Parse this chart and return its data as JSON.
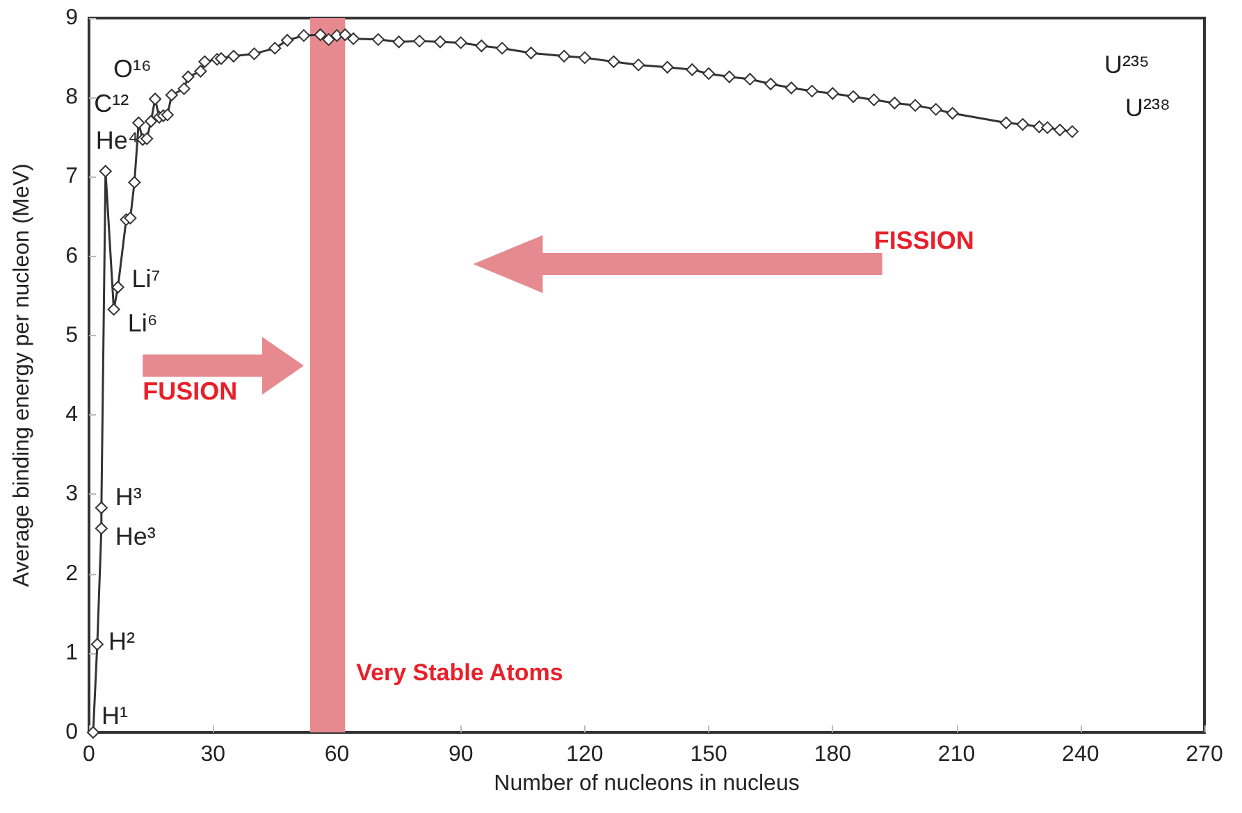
{
  "chart_data": {
    "type": "line",
    "xlabel": "Number of nucleons in nucleus",
    "ylabel": "Average binding energy per nucleon (MeV)",
    "xlim": [
      0,
      270
    ],
    "xticks": [
      0,
      30,
      60,
      90,
      120,
      150,
      180,
      210,
      240,
      270
    ],
    "ylim": [
      0,
      9
    ],
    "yticks": [
      0,
      1,
      2,
      3,
      4,
      5,
      6,
      7,
      8,
      9
    ],
    "marker": "diamond",
    "line_style": "solid",
    "series": [
      {
        "color": "#333333",
        "x": [
          1,
          2,
          3,
          3,
          4,
          6,
          7,
          9,
          10,
          11,
          12,
          13,
          14,
          15,
          16,
          17,
          18,
          19,
          20,
          23,
          24,
          27,
          28,
          31,
          32,
          35,
          40,
          45,
          48,
          52,
          56,
          58,
          60,
          62,
          64,
          70,
          75,
          80,
          85,
          90,
          95,
          100,
          107,
          115,
          120,
          127,
          133,
          140,
          146,
          150,
          155,
          160,
          165,
          170,
          175,
          180,
          185,
          190,
          195,
          200,
          205,
          209,
          222,
          226,
          230,
          232,
          235,
          238
        ],
        "values": [
          0,
          1.11,
          2.57,
          2.83,
          7.07,
          5.33,
          5.61,
          6.46,
          6.48,
          6.93,
          7.68,
          7.47,
          7.48,
          7.7,
          7.98,
          7.75,
          7.77,
          7.78,
          8.03,
          8.11,
          8.26,
          8.33,
          8.45,
          8.48,
          8.49,
          8.52,
          8.55,
          8.62,
          8.72,
          8.78,
          8.79,
          8.73,
          8.78,
          8.79,
          8.74,
          8.73,
          8.7,
          8.71,
          8.7,
          8.69,
          8.65,
          8.62,
          8.56,
          8.52,
          8.5,
          8.45,
          8.41,
          8.38,
          8.35,
          8.3,
          8.26,
          8.23,
          8.17,
          8.12,
          8.08,
          8.05,
          8.01,
          7.97,
          7.93,
          7.9,
          7.85,
          7.8,
          7.68,
          7.66,
          7.63,
          7.62,
          7.59,
          7.57
        ]
      }
    ],
    "bands": [
      {
        "axis": "x",
        "from": 53.5,
        "to": 62,
        "label": "Very Stable Atoms",
        "color": "#e68a8f"
      }
    ],
    "annotations": [
      {
        "text": "H¹",
        "x": 1,
        "y": 0
      },
      {
        "text": "H²",
        "x": 2,
        "y": 1.11
      },
      {
        "text": "He³",
        "x": 3,
        "y": 2.57
      },
      {
        "text": "H³",
        "x": 3,
        "y": 2.83
      },
      {
        "text": "He⁴",
        "x": 4,
        "y": 7.07
      },
      {
        "text": "Li⁶",
        "x": 6,
        "y": 5.33
      },
      {
        "text": "Li⁷",
        "x": 7,
        "y": 5.61
      },
      {
        "text": "C¹²",
        "x": 12,
        "y": 7.68
      },
      {
        "text": "O¹⁶",
        "x": 16,
        "y": 7.98
      },
      {
        "text": "U²³⁵",
        "x": 235,
        "y": 7.59
      },
      {
        "text": "U²³⁸",
        "x": 238,
        "y": 7.57
      },
      "FUSION",
      "FISSION"
    ]
  }
}
